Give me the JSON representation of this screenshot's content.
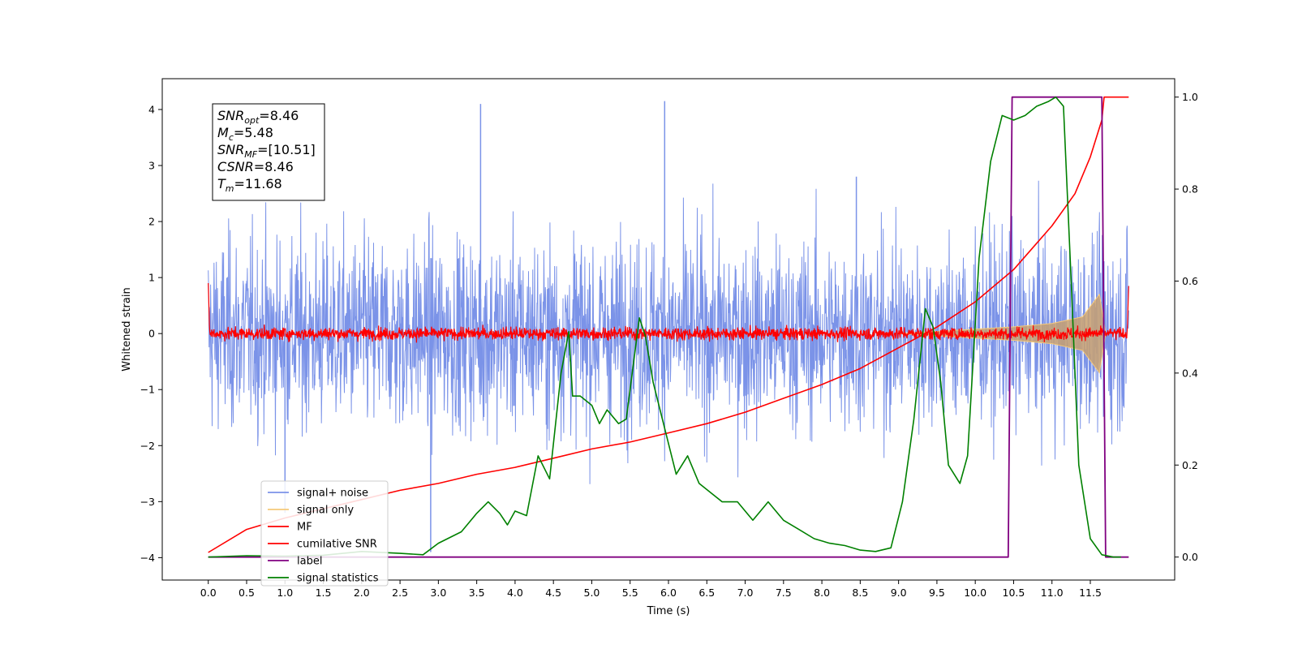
{
  "chart_data": {
    "type": "line",
    "xlabel": "Time (s)",
    "ylabel": "Whitened strain",
    "xlim": [
      -0.6,
      12.6
    ],
    "ylim": [
      -4.4,
      4.55
    ],
    "y2lim": [
      -0.05,
      1.04
    ],
    "xticks": [
      "0.0",
      "0.5",
      "1.0",
      "1.5",
      "2.0",
      "2.5",
      "3.0",
      "3.5",
      "4.0",
      "4.5",
      "5.0",
      "5.5",
      "6.0",
      "6.5",
      "7.0",
      "7.5",
      "8.0",
      "8.5",
      "9.0",
      "9.5",
      "10.0",
      "10.5",
      "11.0",
      "11.5"
    ],
    "yticks": [
      "4",
      "3",
      "2",
      "1",
      "0",
      "−1",
      "−2",
      "−3",
      "−4"
    ],
    "y2ticks": [
      "1.0",
      "0.8",
      "0.6",
      "0.4",
      "0.2",
      "0.0"
    ],
    "annotation": {
      "lines": [
        {
          "main": "SNR",
          "sub": "opt",
          "value": "=8.46"
        },
        {
          "main": "M",
          "sub": "c",
          "value": "=5.48"
        },
        {
          "main": "SNR",
          "sub": "MF",
          "value": "=[10.51]"
        },
        {
          "main": "CSNR",
          "sub": "",
          "value": "=8.46"
        },
        {
          "main": "T",
          "sub": "m",
          "value": "=11.68"
        }
      ]
    },
    "legend": {
      "placement": "lower-left",
      "entries": [
        {
          "label": "signal+ noise",
          "color": "#7b93e8"
        },
        {
          "label": "signal only",
          "color": "#f5c97a"
        },
        {
          "label": "MF",
          "color": "#ff0000"
        },
        {
          "label": "cumilative SNR",
          "color": "#ff0000"
        },
        {
          "label": "label",
          "color": "#800080"
        },
        {
          "label": "signal statistics",
          "color": "#008000"
        }
      ]
    },
    "series": [
      {
        "name": "signal+ noise",
        "axis": "left",
        "color": "#7b93e8",
        "x_range": [
          0.0,
          12.0
        ],
        "amplitude": 1.2,
        "peaks": [
          [
            3.55,
            4.1
          ],
          [
            5.95,
            4.15
          ],
          [
            8.45,
            2.8
          ],
          [
            1.0,
            -3.2
          ],
          [
            2.9,
            -3.9
          ]
        ]
      },
      {
        "name": "signal only",
        "axis": "left",
        "color": "#f5c97a",
        "envelope": [
          [
            9.0,
            0.0
          ],
          [
            10.0,
            0.08
          ],
          [
            10.5,
            0.12
          ],
          [
            11.0,
            0.18
          ],
          [
            11.4,
            0.3
          ],
          [
            11.62,
            0.7
          ],
          [
            11.7,
            0.0
          ]
        ]
      },
      {
        "name": "MF",
        "axis": "left",
        "color": "#ff0000",
        "x_range": [
          0.0,
          12.0
        ],
        "amplitude": 0.08
      },
      {
        "name": "cumilative SNR",
        "axis": "right",
        "color": "#ff0000",
        "x": [
          0.0,
          0.5,
          1.0,
          1.5,
          2.0,
          2.5,
          3.0,
          3.5,
          4.0,
          4.5,
          5.0,
          5.5,
          6.0,
          6.5,
          7.0,
          7.5,
          8.0,
          8.5,
          9.0,
          9.5,
          10.0,
          10.5,
          11.0,
          11.3,
          11.5,
          11.65,
          11.68,
          12.0
        ],
        "y": [
          0.01,
          0.06,
          0.085,
          0.105,
          0.125,
          0.145,
          0.16,
          0.18,
          0.195,
          0.215,
          0.235,
          0.25,
          0.27,
          0.29,
          0.315,
          0.345,
          0.375,
          0.41,
          0.455,
          0.5,
          0.555,
          0.625,
          0.72,
          0.79,
          0.87,
          0.95,
          1.0,
          1.0
        ]
      },
      {
        "name": "label",
        "axis": "right",
        "color": "#800080",
        "x": [
          0.0,
          10.43,
          10.48,
          11.65,
          11.7,
          12.0
        ],
        "y": [
          0.0,
          0.0,
          1.0,
          1.0,
          0.0,
          0.0
        ]
      },
      {
        "name": "signal statistics",
        "axis": "right",
        "color": "#008000",
        "x": [
          0.0,
          0.5,
          1.0,
          1.5,
          2.0,
          2.5,
          2.8,
          3.0,
          3.3,
          3.5,
          3.65,
          3.8,
          3.9,
          4.0,
          4.15,
          4.3,
          4.45,
          4.6,
          4.7,
          4.75,
          4.85,
          5.0,
          5.1,
          5.2,
          5.35,
          5.45,
          5.55,
          5.62,
          5.7,
          5.8,
          5.95,
          6.1,
          6.25,
          6.4,
          6.55,
          6.7,
          6.9,
          7.1,
          7.3,
          7.5,
          7.7,
          7.9,
          8.1,
          8.3,
          8.5,
          8.7,
          8.9,
          9.05,
          9.2,
          9.35,
          9.45,
          9.55,
          9.65,
          9.8,
          9.9,
          10.05,
          10.2,
          10.35,
          10.5,
          10.65,
          10.8,
          10.95,
          11.05,
          11.15,
          11.25,
          11.35,
          11.5,
          11.65,
          11.8,
          11.9
        ],
        "y": [
          0.0,
          0.003,
          0.002,
          0.004,
          0.012,
          0.008,
          0.005,
          0.03,
          0.055,
          0.095,
          0.12,
          0.095,
          0.07,
          0.1,
          0.09,
          0.22,
          0.17,
          0.4,
          0.49,
          0.35,
          0.35,
          0.33,
          0.29,
          0.32,
          0.29,
          0.3,
          0.43,
          0.52,
          0.48,
          0.38,
          0.28,
          0.18,
          0.22,
          0.16,
          0.14,
          0.12,
          0.12,
          0.08,
          0.12,
          0.08,
          0.06,
          0.04,
          0.03,
          0.025,
          0.015,
          0.012,
          0.02,
          0.12,
          0.3,
          0.54,
          0.5,
          0.38,
          0.2,
          0.16,
          0.22,
          0.65,
          0.86,
          0.96,
          0.95,
          0.96,
          0.98,
          0.99,
          1.0,
          0.98,
          0.6,
          0.2,
          0.04,
          0.005,
          0.0,
          0.0
        ]
      }
    ]
  }
}
